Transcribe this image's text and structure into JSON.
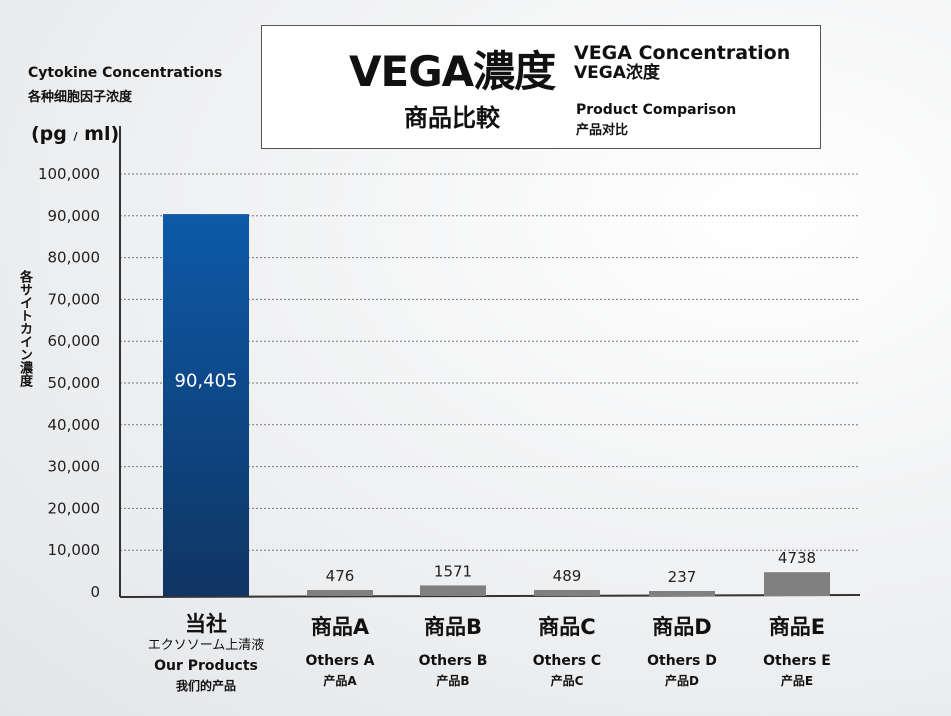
{
  "title": {
    "main": "VEGA濃度",
    "main_sub": "商品比較",
    "en": "VEGA Concentration",
    "cn": "VEGA浓度",
    "sub_en": "Product Comparison",
    "sub_cn": "产品对比"
  },
  "legend": {
    "en": "Cytokine Concentrations",
    "cn": "各种细胞因子浓度"
  },
  "unit": {
    "open": "(pg",
    "slash": "/",
    "close": "ml)"
  },
  "chart_data": {
    "type": "bar",
    "ylabel": "各サイトカイン濃度",
    "ylim": [
      0,
      100000
    ],
    "yticks": [
      0,
      10000,
      20000,
      30000,
      40000,
      50000,
      60000,
      70000,
      80000,
      90000,
      100000
    ],
    "ytick_labels": [
      "0",
      "10,000",
      "20,000",
      "30,000",
      "40,000",
      "50,000",
      "60,000",
      "70,000",
      "80,000",
      "90,000",
      "100,000"
    ],
    "grid": true,
    "categories": [
      "当社",
      "商品A",
      "商品B",
      "商品C",
      "商品D",
      "商品E"
    ],
    "values": [
      90405,
      476,
      1571,
      489,
      237,
      4738
    ],
    "value_labels": [
      "90,405",
      "476",
      "1571",
      "489",
      "237",
      "4738"
    ],
    "colors": [
      "#1a4f8f",
      "#808080",
      "#808080",
      "#808080",
      "#808080",
      "#808080"
    ]
  },
  "categories": [
    {
      "jp": "当社",
      "jp_sub": "エクソソーム上清液",
      "en": "Our Products",
      "cn": "我们的产品"
    },
    {
      "jp": "商品A",
      "jp_sub": "",
      "en": "Others A",
      "cn": "产品A"
    },
    {
      "jp": "商品B",
      "jp_sub": "",
      "en": "Others B",
      "cn": "产品B"
    },
    {
      "jp": "商品C",
      "jp_sub": "",
      "en": "Others C",
      "cn": "产品C"
    },
    {
      "jp": "商品D",
      "jp_sub": "",
      "en": "Others D",
      "cn": "产品D"
    },
    {
      "jp": "商品E",
      "jp_sub": "",
      "en": "Others E",
      "cn": "产品E"
    }
  ]
}
